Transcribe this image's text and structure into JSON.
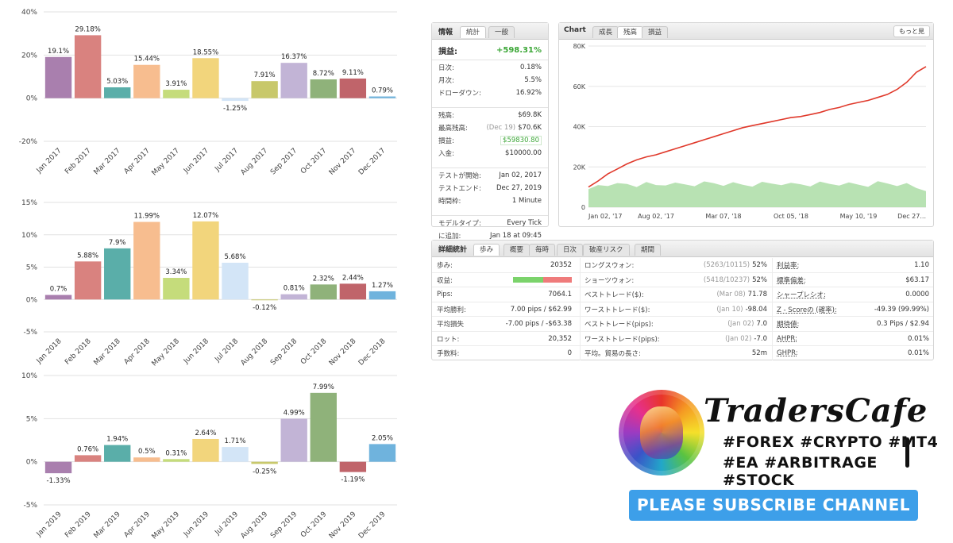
{
  "chart_data": [
    {
      "type": "bar",
      "categories": [
        "Jan 2017",
        "Feb 2017",
        "Mar 2017",
        "Apr 2017",
        "May 2017",
        "Jun 2017",
        "Jul 2017",
        "Aug 2017",
        "Sep 2017",
        "Oct 2017",
        "Nov 2017",
        "Dec 2017"
      ],
      "values": [
        19.1,
        29.18,
        5.03,
        15.44,
        3.91,
        18.55,
        -1.25,
        7.91,
        16.37,
        8.72,
        9.11,
        0.79
      ],
      "value_labels": [
        "19.1%",
        "29.18%",
        "5.03%",
        "15.44%",
        "3.91%",
        "18.55%",
        "-1.25%",
        "7.91%",
        "16.37%",
        "8.72%",
        "9.11%",
        "0.79%"
      ],
      "colors": [
        "#a97fae",
        "#d9827f",
        "#5aaea9",
        "#f7bd8f",
        "#c5dc7b",
        "#f2d57c",
        "#d3e5f7",
        "#c8c86b",
        "#c2b4d6",
        "#8fb27a",
        "#c0646a",
        "#6fb3dd"
      ],
      "ylim": [
        -20,
        40
      ],
      "yticks": [
        {
          "value": -20,
          "label": "-20%"
        },
        {
          "value": 0,
          "label": "0%"
        },
        {
          "value": 20,
          "label": "20%"
        },
        {
          "value": 40,
          "label": "40%"
        }
      ],
      "grid": true
    },
    {
      "type": "bar",
      "categories": [
        "Jan 2018",
        "Feb 2018",
        "Mar 2018",
        "Apr 2018",
        "May 2018",
        "Jun 2018",
        "Jul 2018",
        "Aug 2018",
        "Sep 2018",
        "Oct 2018",
        "Nov 2018",
        "Dec 2018"
      ],
      "values": [
        0.7,
        5.88,
        7.9,
        11.99,
        3.34,
        12.07,
        5.68,
        -0.12,
        0.81,
        2.32,
        2.44,
        1.27
      ],
      "value_labels": [
        "0.7%",
        "5.88%",
        "7.9%",
        "11.99%",
        "3.34%",
        "12.07%",
        "5.68%",
        "-0.12%",
        "0.81%",
        "2.32%",
        "2.44%",
        "1.27%"
      ],
      "colors": [
        "#a97fae",
        "#d9827f",
        "#5aaea9",
        "#f7bd8f",
        "#c5dc7b",
        "#f2d57c",
        "#d3e5f7",
        "#c8c86b",
        "#c2b4d6",
        "#8fb27a",
        "#c0646a",
        "#6fb3dd"
      ],
      "ylim": [
        -5,
        15
      ],
      "yticks": [
        {
          "value": -5,
          "label": "-5%"
        },
        {
          "value": 0,
          "label": "0%"
        },
        {
          "value": 5,
          "label": "5%"
        },
        {
          "value": 10,
          "label": "10%"
        },
        {
          "value": 15,
          "label": "15%"
        }
      ],
      "grid": true
    },
    {
      "type": "bar",
      "categories": [
        "Jan 2019",
        "Feb 2019",
        "Mar 2019",
        "Apr 2019",
        "May 2019",
        "Jun 2019",
        "Jul 2019",
        "Aug 2019",
        "Sep 2019",
        "Oct 2019",
        "Nov 2019",
        "Dec 2019"
      ],
      "values": [
        -1.33,
        0.76,
        1.94,
        0.5,
        0.31,
        2.64,
        1.71,
        -0.25,
        4.99,
        7.99,
        -1.19,
        2.05
      ],
      "value_labels": [
        "-1.33%",
        "0.76%",
        "1.94%",
        "0.5%",
        "0.31%",
        "2.64%",
        "1.71%",
        "-0.25%",
        "4.99%",
        "7.99%",
        "-1.19%",
        "2.05%"
      ],
      "colors": [
        "#a97fae",
        "#d9827f",
        "#5aaea9",
        "#f7bd8f",
        "#c5dc7b",
        "#f2d57c",
        "#d3e5f7",
        "#c8c86b",
        "#c2b4d6",
        "#8fb27a",
        "#c0646a",
        "#6fb3dd"
      ],
      "ylim": [
        -5,
        10
      ],
      "yticks": [
        {
          "value": -5,
          "label": "-5%"
        },
        {
          "value": 0,
          "label": "0%"
        },
        {
          "value": 5,
          "label": "5%"
        },
        {
          "value": 10,
          "label": "10%"
        }
      ],
      "grid": true
    },
    {
      "type": "line",
      "title": "Chart",
      "tabs": [
        "成長",
        "残高",
        "損益"
      ],
      "active_tab": 1,
      "button": "もっと見",
      "categories": [
        "Jan 02, '17",
        null,
        null,
        null,
        null,
        null,
        null,
        "Aug 02, '17",
        null,
        null,
        null,
        null,
        null,
        null,
        "Mar 07, '18",
        null,
        null,
        null,
        null,
        null,
        null,
        "Oct 05, '18",
        null,
        null,
        null,
        null,
        null,
        null,
        "May 10, '19",
        null,
        null,
        null,
        null,
        null,
        null,
        "Dec 27..."
      ],
      "series": [
        {
          "color": "#e0392b",
          "style": "line",
          "values": [
            10000,
            13000,
            16500,
            19000,
            21500,
            23500,
            25000,
            26000,
            27500,
            29000,
            30500,
            32000,
            33500,
            35000,
            36500,
            38000,
            39500,
            40500,
            41500,
            42500,
            43500,
            44500,
            45000,
            46000,
            47000,
            48500,
            49500,
            51000,
            52000,
            53000,
            54500,
            56000,
            58500,
            62000,
            67000,
            69800
          ]
        },
        {
          "color": "#a6dba0",
          "style": "area",
          "values": [
            9000,
            11000,
            10500,
            12000,
            11500,
            10000,
            12500,
            11000,
            10800,
            12200,
            11300,
            10400,
            12800,
            11900,
            10600,
            12400,
            11100,
            10200,
            12600,
            11700,
            10900,
            12100,
            11400,
            10300,
            12700,
            11600,
            10700,
            12300,
            11200,
            10100,
            12900,
            11800,
            10500,
            12000,
            9500,
            8000
          ]
        }
      ],
      "ylim": [
        0,
        80000
      ],
      "yticks": [
        0,
        {
          "value": 20000,
          "label": "20K"
        },
        {
          "value": 40000,
          "label": "40K"
        },
        {
          "value": 60000,
          "label": "60K"
        },
        {
          "value": 80000,
          "label": "80K"
        }
      ],
      "grid": true
    }
  ],
  "stats_panel": {
    "title": "情報",
    "tabs": [
      "統計",
      "一般"
    ],
    "headline": {
      "label": "損益:",
      "value": "+598.31%"
    },
    "groups": [
      [
        {
          "label": "日次:",
          "value": "0.18%"
        },
        {
          "label": "月次:",
          "value": "5.5%"
        },
        {
          "label": "ドローダウン:",
          "value": "16.92%"
        }
      ],
      [
        {
          "label": "残高:",
          "value": "$69.8K"
        },
        {
          "label": "最高残高:",
          "note": "(Dec 19)",
          "value": "$70.6K"
        },
        {
          "label": "損益:",
          "value": "$59830.80"
        },
        {
          "label": "入金:",
          "value": "$10000.00"
        }
      ],
      [
        {
          "label": "テストが開始:",
          "value": "Jan 02, 2017"
        },
        {
          "label": "テストエンド:",
          "value": "Dec 27, 2019"
        },
        {
          "label": "時間枠:",
          "value": "1 Minute"
        }
      ],
      [
        {
          "label": "モデルタイプ:",
          "value": "Every Tick"
        },
        {
          "label": "に追加:",
          "value": "Jan 18 at 09:45"
        }
      ]
    ]
  },
  "detail_panel": {
    "title": "詳細統計",
    "tabs": [
      "歩み",
      "概要",
      "毎時",
      "日次",
      "破産リスク",
      "期間"
    ],
    "rows": [
      [
        {
          "label": "歩み:",
          "value": "20352"
        },
        {
          "label": "ロングスウォン:",
          "note": "(5263/10115)",
          "value": "52%"
        },
        {
          "label": "利益率:",
          "value": "1.10"
        }
      ],
      [
        {
          "label": "収益:"
        },
        {
          "label": "ショーツウォン:",
          "note": "(5418/10237)",
          "value": "52%"
        },
        {
          "label": "標準偏差:",
          "value": "$63.17"
        }
      ],
      [
        {
          "label": "Pips:",
          "value": "7064.1"
        },
        {
          "label": "ベストトレード($):",
          "note": "(Mar 08)",
          "value": "71.78"
        },
        {
          "label": "シャープレシオ:",
          "value": "0.0000"
        }
      ],
      [
        {
          "label": "平均勝利:",
          "value": "7.00 pips / $62.99"
        },
        {
          "label": "ワーストトレード($):",
          "note": "(Jan 10)",
          "value": "-98.04"
        },
        {
          "label": "Z - Scoreの (確率):",
          "value": "-49.39 (99.99%)"
        }
      ],
      [
        {
          "label": "平均損失",
          "value": "-7.00 pips / -$63.38"
        },
        {
          "label": "ベストトレード(pips):",
          "note": "(Jan 02)",
          "value": "7.0"
        },
        {
          "label": "期待値:",
          "value": "0.3 Pips / $2.94"
        }
      ],
      [
        {
          "label": "ロット:",
          "value": "20,352"
        },
        {
          "label": "ワーストトレード(pips):",
          "note": "(Jan 02)",
          "value": "-7.0"
        },
        {
          "label": "AHPR:",
          "value": "0.01%"
        }
      ],
      [
        {
          "label": "手数料:",
          "value": "0"
        },
        {
          "label": "平均。貿易の長さ:",
          "value": "52m"
        },
        {
          "label": "GHPR:",
          "value": "0.01%"
        }
      ]
    ]
  },
  "brand": {
    "name": "TradersCafe",
    "tags": [
      "#FOREX #CRYPTO #MT4",
      "#EA #ARBITRAGE #STOCK"
    ],
    "button": "PLEASE SUBSCRIBE CHANNEL"
  }
}
